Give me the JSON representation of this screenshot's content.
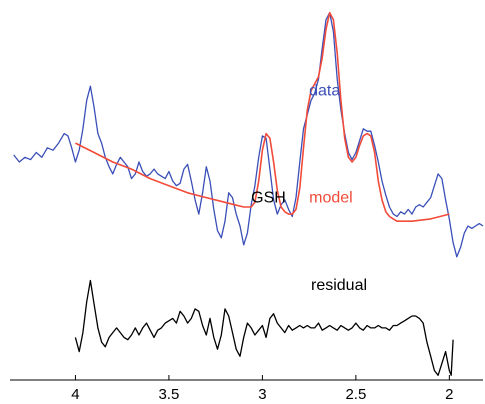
{
  "chart_data": {
    "type": "line",
    "title": "",
    "xlabel": "",
    "ylabel": "",
    "x_reversed": true,
    "xlim": [
      4.35,
      1.82
    ],
    "ylim": [
      -0.32,
      1.25
    ],
    "ticks": [
      {
        "value": 4,
        "label": "4"
      },
      {
        "value": 3.5,
        "label": "3.5"
      },
      {
        "value": 3,
        "label": "3"
      },
      {
        "value": 2.5,
        "label": "2.5"
      },
      {
        "value": 2,
        "label": "2"
      }
    ],
    "annotations": [
      {
        "text": "data",
        "x": 2.75,
        "y": 0.88,
        "color": "#3a4fb8"
      },
      {
        "text": "model",
        "x": 2.75,
        "y": 0.43,
        "color": "#f24b3a"
      },
      {
        "text": "GSH",
        "x": 3.06,
        "y": 0.43,
        "color": "#000000"
      },
      {
        "text": "residual",
        "x": 2.74,
        "y": 0.06,
        "color": "#000000"
      }
    ],
    "series": [
      {
        "key": "data",
        "color": "#3a4fb8",
        "x": [
          4.33,
          4.3,
          4.27,
          4.24,
          4.21,
          4.18,
          4.15,
          4.12,
          4.09,
          4.06,
          4.04,
          4.02,
          4.0,
          3.98,
          3.96,
          3.94,
          3.92,
          3.9,
          3.88,
          3.86,
          3.84,
          3.82,
          3.8,
          3.78,
          3.76,
          3.74,
          3.72,
          3.7,
          3.68,
          3.66,
          3.64,
          3.62,
          3.6,
          3.58,
          3.56,
          3.54,
          3.52,
          3.5,
          3.48,
          3.46,
          3.44,
          3.42,
          3.4,
          3.38,
          3.36,
          3.34,
          3.32,
          3.3,
          3.28,
          3.26,
          3.24,
          3.22,
          3.2,
          3.18,
          3.16,
          3.14,
          3.12,
          3.1,
          3.08,
          3.06,
          3.04,
          3.02,
          3.0,
          2.98,
          2.96,
          2.94,
          2.92,
          2.9,
          2.88,
          2.86,
          2.84,
          2.82,
          2.8,
          2.78,
          2.76,
          2.74,
          2.72,
          2.7,
          2.68,
          2.66,
          2.64,
          2.62,
          2.6,
          2.58,
          2.56,
          2.54,
          2.52,
          2.5,
          2.48,
          2.46,
          2.44,
          2.42,
          2.4,
          2.38,
          2.36,
          2.34,
          2.32,
          2.3,
          2.28,
          2.26,
          2.24,
          2.22,
          2.2,
          2.18,
          2.16,
          2.14,
          2.12,
          2.1,
          2.08,
          2.06,
          2.04,
          2.02,
          2.0,
          1.98,
          1.96,
          1.94,
          1.92,
          1.9,
          1.88,
          1.86,
          1.84,
          1.82
        ],
        "y": [
          0.63,
          0.6,
          0.62,
          0.61,
          0.64,
          0.62,
          0.66,
          0.65,
          0.68,
          0.72,
          0.71,
          0.66,
          0.6,
          0.65,
          0.74,
          0.86,
          0.92,
          0.83,
          0.72,
          0.68,
          0.62,
          0.58,
          0.55,
          0.59,
          0.62,
          0.6,
          0.58,
          0.53,
          0.55,
          0.6,
          0.56,
          0.54,
          0.55,
          0.57,
          0.55,
          0.54,
          0.53,
          0.56,
          0.52,
          0.5,
          0.51,
          0.57,
          0.59,
          0.52,
          0.44,
          0.38,
          0.47,
          0.58,
          0.52,
          0.4,
          0.31,
          0.28,
          0.35,
          0.47,
          0.45,
          0.38,
          0.33,
          0.25,
          0.3,
          0.42,
          0.5,
          0.62,
          0.71,
          0.7,
          0.57,
          0.44,
          0.38,
          0.42,
          0.44,
          0.4,
          0.37,
          0.45,
          0.6,
          0.74,
          0.8,
          0.86,
          0.89,
          0.95,
          1.08,
          1.2,
          1.23,
          1.15,
          0.95,
          0.82,
          0.72,
          0.64,
          0.61,
          0.64,
          0.69,
          0.74,
          0.73,
          0.73,
          0.67,
          0.6,
          0.52,
          0.46,
          0.41,
          0.38,
          0.37,
          0.39,
          0.38,
          0.4,
          0.38,
          0.41,
          0.42,
          0.41,
          0.43,
          0.45,
          0.5,
          0.55,
          0.53,
          0.44,
          0.36,
          0.26,
          0.2,
          0.24,
          0.3,
          0.33,
          0.32,
          0.33,
          0.34,
          0.33
        ]
      },
      {
        "key": "model",
        "color": "#f24b3a",
        "x": [
          4.0,
          3.9,
          3.8,
          3.7,
          3.6,
          3.5,
          3.4,
          3.3,
          3.2,
          3.15,
          3.1,
          3.06,
          3.04,
          3.02,
          3.0,
          2.98,
          2.96,
          2.94,
          2.92,
          2.9,
          2.88,
          2.86,
          2.84,
          2.82,
          2.8,
          2.78,
          2.76,
          2.74,
          2.72,
          2.7,
          2.68,
          2.66,
          2.64,
          2.62,
          2.6,
          2.58,
          2.56,
          2.54,
          2.52,
          2.5,
          2.48,
          2.46,
          2.44,
          2.42,
          2.4,
          2.38,
          2.36,
          2.34,
          2.32,
          2.3,
          2.28,
          2.25,
          2.2,
          2.15,
          2.1,
          2.05,
          2.0
        ],
        "y": [
          0.68,
          0.64,
          0.6,
          0.57,
          0.53,
          0.5,
          0.47,
          0.45,
          0.43,
          0.42,
          0.41,
          0.41,
          0.43,
          0.52,
          0.65,
          0.72,
          0.7,
          0.6,
          0.48,
          0.41,
          0.39,
          0.38,
          0.38,
          0.4,
          0.49,
          0.66,
          0.82,
          0.9,
          0.93,
          0.96,
          1.04,
          1.16,
          1.23,
          1.2,
          1.06,
          0.86,
          0.7,
          0.62,
          0.6,
          0.62,
          0.67,
          0.71,
          0.72,
          0.71,
          0.64,
          0.52,
          0.44,
          0.39,
          0.37,
          0.36,
          0.35,
          0.35,
          0.35,
          0.355,
          0.36,
          0.37,
          0.38
        ]
      },
      {
        "key": "residual",
        "color": "#000000",
        "x": [
          4.0,
          3.98,
          3.96,
          3.94,
          3.92,
          3.9,
          3.88,
          3.86,
          3.84,
          3.82,
          3.8,
          3.78,
          3.76,
          3.74,
          3.72,
          3.7,
          3.68,
          3.66,
          3.64,
          3.62,
          3.6,
          3.58,
          3.56,
          3.54,
          3.52,
          3.5,
          3.48,
          3.46,
          3.44,
          3.42,
          3.4,
          3.38,
          3.36,
          3.34,
          3.32,
          3.3,
          3.28,
          3.26,
          3.24,
          3.22,
          3.2,
          3.18,
          3.16,
          3.14,
          3.12,
          3.1,
          3.08,
          3.06,
          3.04,
          3.02,
          3.0,
          2.98,
          2.96,
          2.94,
          2.92,
          2.9,
          2.88,
          2.86,
          2.84,
          2.82,
          2.8,
          2.78,
          2.76,
          2.74,
          2.72,
          2.7,
          2.68,
          2.66,
          2.64,
          2.62,
          2.6,
          2.58,
          2.56,
          2.54,
          2.52,
          2.5,
          2.48,
          2.46,
          2.44,
          2.42,
          2.4,
          2.38,
          2.36,
          2.34,
          2.32,
          2.3,
          2.28,
          2.26,
          2.24,
          2.22,
          2.2,
          2.18,
          2.16,
          2.14,
          2.12,
          2.1,
          2.08,
          2.06,
          2.04,
          2.02,
          2.0,
          1.99,
          1.98
        ],
        "y": [
          -0.14,
          -0.2,
          -0.12,
          0.01,
          0.1,
          0.0,
          -0.1,
          -0.16,
          -0.18,
          -0.14,
          -0.12,
          -0.1,
          -0.12,
          -0.14,
          -0.15,
          -0.13,
          -0.1,
          -0.13,
          -0.1,
          -0.08,
          -0.11,
          -0.14,
          -0.11,
          -0.1,
          -0.08,
          -0.07,
          -0.06,
          -0.08,
          -0.03,
          -0.05,
          -0.08,
          -0.06,
          -0.02,
          -0.03,
          -0.09,
          -0.13,
          -0.06,
          -0.14,
          -0.19,
          -0.13,
          -0.02,
          -0.05,
          -0.12,
          -0.19,
          -0.22,
          -0.14,
          -0.08,
          -0.1,
          -0.13,
          -0.11,
          -0.09,
          -0.14,
          -0.06,
          -0.04,
          -0.08,
          -0.1,
          -0.12,
          -0.09,
          -0.11,
          -0.1,
          -0.09,
          -0.1,
          -0.09,
          -0.1,
          -0.1,
          -0.08,
          -0.11,
          -0.1,
          -0.09,
          -0.1,
          -0.11,
          -0.09,
          -0.1,
          -0.11,
          -0.1,
          -0.08,
          -0.1,
          -0.11,
          -0.09,
          -0.1,
          -0.1,
          -0.09,
          -0.1,
          -0.1,
          -0.11,
          -0.09,
          -0.09,
          -0.08,
          -0.07,
          -0.06,
          -0.05,
          -0.05,
          -0.06,
          -0.08,
          -0.16,
          -0.22,
          -0.28,
          -0.3,
          -0.25,
          -0.2,
          -0.28,
          -0.3,
          -0.15
        ]
      }
    ]
  }
}
